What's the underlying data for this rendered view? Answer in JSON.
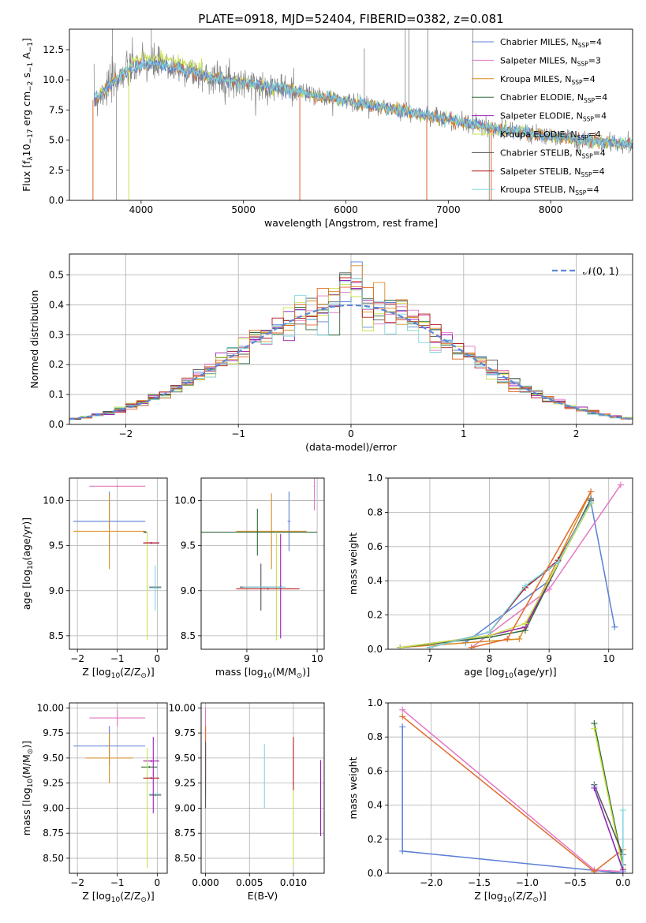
{
  "figure_title": "PLATE=0918, MJD=52404, FIBERID=0382, z=0.081",
  "colors": {
    "chabrier_miles": "#5b7fd8",
    "salpeter_miles": "#e377c2",
    "kroupa_miles": "#d98c1f",
    "chabrier_elodie": "#2e6b3c",
    "salpeter_elodie": "#9b1fb5",
    "kroupa_elodie": "#c8e04a",
    "chabrier_stelib": "#555555",
    "salpeter_stelib": "#b2171a",
    "kroupa_stelib": "#7fd6e0",
    "data": "#808080",
    "fit_orange": "#e0692a",
    "gaussian": "#5b87d6"
  },
  "chart_data": [
    {
      "id": "spectrum",
      "type": "line",
      "xlabel": "wavelength [Angstrom, rest frame]",
      "ylabel_parts": [
        "Flux [f",
        "λ",
        "10",
        "−17",
        " erg cm",
        "−2",
        " s",
        "−1",
        " A",
        "−1",
        "]"
      ],
      "xlim": [
        3300,
        8800
      ],
      "ylim": [
        0,
        14.2
      ],
      "xticks": [
        4000,
        5000,
        6000,
        7000,
        8000
      ],
      "yticks": [
        0.0,
        2.5,
        5.0,
        7.5,
        10.0,
        12.5
      ],
      "grid": false,
      "legend_placement": "upper-right",
      "legend": [
        {
          "pre": "Chabrier MILES, N",
          "sub": "SSP",
          "post": "=4",
          "color_key": "chabrier_miles"
        },
        {
          "pre": "Salpeter MILES, N",
          "sub": "SSP",
          "post": "=3",
          "color_key": "salpeter_miles"
        },
        {
          "pre": "Kroupa MILES, N",
          "sub": "SSP",
          "post": "=4",
          "color_key": "kroupa_miles"
        },
        {
          "pre": "Chabrier ELODIE, N",
          "sub": "SSP",
          "post": "=4",
          "color_key": "chabrier_elodie"
        },
        {
          "pre": "Salpeter ELODIE, N",
          "sub": "SSP",
          "post": "=4",
          "color_key": "salpeter_elodie"
        },
        {
          "pre": "Kroupa ELODIE, N",
          "sub": "SSP",
          "post": "=4",
          "color_key": "kroupa_elodie"
        },
        {
          "pre": "Chabrier STELIB, N",
          "sub": "SSP",
          "post": "=4",
          "color_key": "chabrier_stelib"
        },
        {
          "pre": "Salpeter STELIB, N",
          "sub": "SSP",
          "post": "=4",
          "color_key": "salpeter_stelib"
        },
        {
          "pre": "Kroupa STELIB, N",
          "sub": "SSP",
          "post": "=4",
          "color_key": "kroupa_stelib"
        }
      ],
      "continuum": {
        "x": [
          3540,
          3600,
          3700,
          3800,
          3900,
          4000,
          4100,
          4200,
          4300,
          4500,
          4700,
          4900,
          5100,
          5300,
          5500,
          5700,
          5900,
          6100,
          6300,
          6500,
          6700,
          6900,
          7100,
          7300,
          7500,
          7700,
          7900,
          8100,
          8300,
          8500,
          8800
        ],
        "y": [
          8.3,
          8.8,
          9.6,
          10.4,
          10.9,
          11.2,
          11.3,
          11.2,
          11.0,
          10.6,
          10.2,
          9.9,
          9.6,
          9.4,
          9.1,
          8.7,
          8.4,
          8.1,
          7.8,
          7.5,
          7.2,
          6.9,
          6.5,
          6.2,
          5.9,
          5.7,
          5.4,
          5.2,
          5.0,
          4.8,
          4.7
        ]
      },
      "data_spikes": [
        {
          "x": 3720,
          "y": 14.2
        },
        {
          "x": 3760,
          "y": 0.0
        },
        {
          "x": 4100,
          "y": 14.2
        },
        {
          "x": 5550,
          "y": 0.0
        },
        {
          "x": 6180,
          "y": 12.6
        },
        {
          "x": 6580,
          "y": 14.2
        },
        {
          "x": 6615,
          "y": 14.2
        },
        {
          "x": 6790,
          "y": 0.0
        },
        {
          "x": 6800,
          "y": 14.2
        },
        {
          "x": 7240,
          "y": 14.2
        },
        {
          "x": 7400,
          "y": 0.0
        }
      ],
      "fit_dips": [
        {
          "x": 3530,
          "y": 0.0,
          "color_key": "fit_orange"
        },
        {
          "x": 3880,
          "y": 0.0,
          "color_key": "kroupa_elodie"
        },
        {
          "x": 5550,
          "y": 0.0,
          "color_key": "fit_orange"
        },
        {
          "x": 6790,
          "y": 0.0,
          "color_key": "fit_orange"
        },
        {
          "x": 7420,
          "y": 0.0,
          "color_key": "fit_orange"
        }
      ]
    },
    {
      "id": "residuals",
      "type": "histogram",
      "xlabel": "(data-model)/error",
      "ylabel": "Normed distribution",
      "xlim": [
        -2.5,
        2.5
      ],
      "ylim": [
        0,
        0.57
      ],
      "xticks": [
        -2,
        -1,
        0,
        1,
        2
      ],
      "yticks": [
        0.0,
        0.1,
        0.2,
        0.3,
        0.4,
        0.5
      ],
      "grid": true,
      "legend_placement": "upper-right",
      "legend": [
        {
          "label": "𝒩(0, 1)",
          "color_key": "gaussian",
          "style": "dashed"
        }
      ],
      "bin_width": 0.1,
      "bin_start": -2.5
    },
    {
      "id": "age_vs_Z",
      "type": "errorbar",
      "xlabel_parts": [
        "Z [log",
        "10",
        "(Z/Z",
        "⊙",
        ")]"
      ],
      "ylabel_parts": [
        "age  [log",
        "10",
        "(age/yr)]"
      ],
      "xlim": [
        -2.2,
        0.25
      ],
      "ylim": [
        8.35,
        10.25
      ],
      "xticks": [
        -2,
        -1,
        0
      ],
      "yticks": [
        8.5,
        9.0,
        9.5,
        10.0
      ],
      "grid": true,
      "points": [
        {
          "color_key": "chabrier_miles",
          "x": -1.2,
          "xerr": 0.9,
          "y": 9.77,
          "yerr": 0.33
        },
        {
          "color_key": "salpeter_miles",
          "x": -1.0,
          "xerr": 0.7,
          "y": 10.16,
          "yerr": 0.01
        },
        {
          "color_key": "kroupa_miles",
          "x": -1.2,
          "xerr": 0.9,
          "y": 9.66,
          "yerr": 0.42
        },
        {
          "color_key": "chabrier_elodie",
          "x": -0.3,
          "xerr": 0.05,
          "y": 9.65,
          "yerr": 0.01
        },
        {
          "color_key": "salpeter_elodie",
          "x": -0.15,
          "xerr": 0.2,
          "y": 9.53,
          "yerr": 0.01
        },
        {
          "color_key": "kroupa_elodie",
          "x": -0.25,
          "xerr": 0.02,
          "y": 9.05,
          "yerr": 0.6
        },
        {
          "color_key": "chabrier_stelib",
          "x": -0.05,
          "xerr": 0.15,
          "y": 9.04,
          "yerr": 0.01
        },
        {
          "color_key": "salpeter_stelib",
          "x": -0.15,
          "xerr": 0.2,
          "y": 9.53,
          "yerr": 0.01
        },
        {
          "color_key": "kroupa_stelib",
          "x": -0.05,
          "xerr": 0.15,
          "y": 9.03,
          "yerr": 0.25
        }
      ]
    },
    {
      "id": "age_vs_mass",
      "type": "errorbar",
      "xlabel_parts": [
        "mass [log",
        "10",
        "(M/M",
        "⊙",
        ")]"
      ],
      "ylabel_parts": [],
      "xlim": [
        8.35,
        10.1
      ],
      "ylim": [
        8.35,
        10.25
      ],
      "xticks": [
        9,
        10
      ],
      "yticks": [
        8.5,
        9.0,
        9.5,
        10.0
      ],
      "grid": true,
      "points": [
        {
          "color_key": "chabrier_miles",
          "x": 9.6,
          "xerr": 0.02,
          "y": 9.77,
          "yerr": 0.33
        },
        {
          "color_key": "salpeter_miles",
          "x": 9.96,
          "xerr": 0.01,
          "y": 10.16,
          "yerr": 0.27
        },
        {
          "color_key": "kroupa_miles",
          "x": 9.35,
          "xerr": 0.5,
          "y": 9.66,
          "yerr": 0.42
        },
        {
          "color_key": "chabrier_elodie",
          "x": 9.15,
          "xerr": 0.85,
          "y": 9.65,
          "yerr": 0.26
        },
        {
          "color_key": "salpeter_elodie",
          "x": 9.48,
          "xerr": 0.01,
          "y": 9.05,
          "yerr": 0.58
        },
        {
          "color_key": "kroupa_elodie",
          "x": 9.42,
          "xerr": 0.01,
          "y": 9.05,
          "yerr": 0.6
        },
        {
          "color_key": "chabrier_stelib",
          "x": 9.2,
          "xerr": 0.3,
          "y": 9.04,
          "yerr": 0.26
        },
        {
          "color_key": "salpeter_stelib",
          "x": 9.3,
          "xerr": 0.45,
          "y": 9.02,
          "yerr": 0.01
        },
        {
          "color_key": "kroupa_stelib",
          "x": 9.25,
          "xerr": 0.3,
          "y": 9.04,
          "yerr": 0.01
        }
      ]
    },
    {
      "id": "weight_vs_age",
      "type": "line",
      "xlabel_parts": [
        "age  [log",
        "10",
        "(age/yr)]"
      ],
      "ylabel": "mass weight",
      "xlim": [
        6.3,
        10.4
      ],
      "ylim": [
        0,
        1.0
      ],
      "xticks": [
        7,
        8,
        9,
        10
      ],
      "yticks": [
        0.0,
        0.2,
        0.4,
        0.6,
        0.8,
        1.0
      ],
      "grid": true,
      "series": [
        {
          "color_key": "chabrier_miles",
          "x": [
            7.6,
            9.0,
            9.7,
            10.1
          ],
          "y": [
            0.04,
            0.4,
            0.86,
            0.13
          ]
        },
        {
          "color_key": "salpeter_miles",
          "x": [
            7.7,
            9.0,
            10.2
          ],
          "y": [
            0.01,
            0.35,
            0.96
          ]
        },
        {
          "color_key": "kroupa_miles",
          "x": [
            6.5,
            8.5,
            9.7
          ],
          "y": [
            0.01,
            0.06,
            0.92
          ]
        },
        {
          "color_key": "chabrier_elodie",
          "x": [
            6.5,
            8.0,
            8.6,
            9.7
          ],
          "y": [
            0.01,
            0.07,
            0.11,
            0.88
          ]
        },
        {
          "color_key": "salpeter_elodie",
          "x": [
            6.5,
            8.0,
            8.6,
            9.7
          ],
          "y": [
            0.01,
            0.08,
            0.13,
            0.87
          ]
        },
        {
          "color_key": "kroupa_elodie",
          "x": [
            6.5,
            8.0,
            8.6,
            9.7
          ],
          "y": [
            0.01,
            0.08,
            0.15,
            0.85
          ]
        },
        {
          "color_key": "chabrier_stelib",
          "x": [
            7.0,
            8.0,
            8.6,
            9.15,
            9.7
          ],
          "y": [
            0.01,
            0.1,
            0.36,
            0.51,
            0.87
          ]
        },
        {
          "color_key": "salpeter_stelib",
          "x": [
            7.0,
            8.0,
            8.6,
            9.15,
            9.7
          ],
          "y": [
            0.01,
            0.1,
            0.36,
            0.52,
            0.86
          ]
        },
        {
          "color_key": "kroupa_stelib",
          "x": [
            7.0,
            8.0,
            8.6,
            9.15,
            9.7
          ],
          "y": [
            0.01,
            0.1,
            0.37,
            0.51,
            0.86
          ]
        },
        {
          "color_key": "fit_orange",
          "x": [
            7.7,
            8.3,
            9.7
          ],
          "y": [
            0.01,
            0.06,
            0.92
          ]
        }
      ]
    },
    {
      "id": "mass_vs_Z",
      "type": "errorbar",
      "xlabel_parts": [
        "Z [log",
        "10",
        "(Z/Z",
        "⊙",
        ")]"
      ],
      "ylabel_parts": [
        "mass [log",
        "10",
        "(M/M",
        "⊙",
        ")]"
      ],
      "xlim": [
        -2.2,
        0.25
      ],
      "ylim": [
        8.35,
        10.05
      ],
      "xticks": [
        -2,
        -1,
        0
      ],
      "yticks": [
        8.5,
        8.75,
        9.0,
        9.25,
        9.5,
        9.75,
        10.0
      ],
      "grid": true,
      "points": [
        {
          "color_key": "chabrier_miles",
          "x": -1.2,
          "xerr": 0.9,
          "y": 9.62,
          "yerr": 0.2
        },
        {
          "color_key": "salpeter_miles",
          "x": -1.0,
          "xerr": 0.7,
          "y": 9.9,
          "yerr": 0.08
        },
        {
          "color_key": "kroupa_miles",
          "x": -1.2,
          "xerr": 0.6,
          "y": 9.5,
          "yerr": 0.25
        },
        {
          "color_key": "chabrier_elodie",
          "x": -0.2,
          "xerr": 0.2,
          "y": 9.41,
          "yerr": 0.01
        },
        {
          "color_key": "salpeter_elodie",
          "x": -0.15,
          "xerr": 0.2,
          "y": 9.47,
          "yerr": 0.01
        },
        {
          "color_key": "kroupa_elodie",
          "x": -0.25,
          "xerr": 0.02,
          "y": 9.0,
          "yerr": 0.6
        },
        {
          "color_key": "chabrier_stelib",
          "x": -0.05,
          "xerr": 0.15,
          "y": 9.13,
          "yerr": 0.01
        },
        {
          "color_key": "salpeter_stelib",
          "x": -0.15,
          "xerr": 0.2,
          "y": 9.3,
          "yerr": 0.01
        },
        {
          "color_key": "kroupa_stelib",
          "x": -0.05,
          "xerr": 0.15,
          "y": 9.14,
          "yerr": 0.01
        },
        {
          "color_key": "salpeter_elodie",
          "x": -0.1,
          "xerr": 0.01,
          "y": 9.33,
          "yerr": 0.38
        }
      ]
    },
    {
      "id": "mass_vs_ebv",
      "type": "errorbar",
      "xlabel": "E(B-V)",
      "ylabel_parts": [],
      "xlim": [
        -0.0005,
        0.0135
      ],
      "ylim": [
        8.35,
        10.05
      ],
      "xticks": [
        0.0,
        0.005,
        0.01
      ],
      "xtick_labels": [
        "0.000",
        "0.005",
        "0.010"
      ],
      "yticks": [
        8.5,
        8.75,
        9.0,
        9.25,
        9.5,
        9.75,
        10.0
      ],
      "grid": true,
      "points": [
        {
          "color_key": "salpeter_miles",
          "x": 0.0,
          "xerr": 0.0,
          "y": 9.65,
          "yerr": 0.35
        },
        {
          "color_key": "fit_orange",
          "x": 0.0,
          "xerr": 0.0,
          "y": 9.47,
          "yerr": 0.35
        },
        {
          "color_key": "chabrier_stelib",
          "x": 0.0,
          "xerr": 0.0,
          "y": 9.33,
          "yerr": 0.33
        },
        {
          "color_key": "kroupa_stelib",
          "x": 0.0067,
          "xerr": 0.0,
          "y": 9.32,
          "yerr": 0.32
        },
        {
          "color_key": "salpeter_stelib",
          "x": 0.01,
          "xerr": 0.0,
          "y": 9.44,
          "yerr": 0.27
        },
        {
          "color_key": "kroupa_elodie",
          "x": 0.01,
          "xerr": 0.0,
          "y": 8.8,
          "yerr": 0.38
        },
        {
          "color_key": "salpeter_elodie",
          "x": 0.0131,
          "xerr": 0.0,
          "y": 9.1,
          "yerr": 0.38
        }
      ]
    },
    {
      "id": "weight_vs_Z",
      "type": "line",
      "xlabel_parts": [
        "Z [log",
        "10",
        "(Z/Z",
        "⊙",
        ")]"
      ],
      "ylabel": "mass weight",
      "xlim": [
        -2.45,
        0.1
      ],
      "ylim": [
        0,
        1.0
      ],
      "xticks": [
        -2.0,
        -1.5,
        -1.0,
        -0.5,
        0.0
      ],
      "xtick_labels": [
        "−2.0",
        "−1.5",
        "−1.0",
        "−0.5",
        "0.0"
      ],
      "yticks": [
        0.0,
        0.2,
        0.4,
        0.6,
        0.8,
        1.0
      ],
      "grid": true,
      "series": [
        {
          "color_key": "chabrier_miles",
          "x": [
            -2.3,
            -2.3,
            0.0,
            0.0
          ],
          "y": [
            0.86,
            0.13,
            0.0,
            0.01
          ]
        },
        {
          "color_key": "salpeter_miles",
          "x": [
            -2.3,
            -0.3,
            0.0
          ],
          "y": [
            0.96,
            0.02,
            0.01
          ]
        },
        {
          "color_key": "fit_orange",
          "x": [
            -2.3,
            -0.3,
            0.0
          ],
          "y": [
            0.92,
            0.01,
            0.14
          ]
        },
        {
          "color_key": "chabrier_elodie",
          "x": [
            -0.3,
            0.0
          ],
          "y": [
            0.88,
            0.05
          ]
        },
        {
          "color_key": "kroupa_elodie",
          "x": [
            -0.3,
            0.0
          ],
          "y": [
            0.85,
            0.03
          ]
        },
        {
          "color_key": "chabrier_stelib",
          "x": [
            -0.3,
            0.0
          ],
          "y": [
            0.52,
            0.11
          ]
        },
        {
          "color_key": "kroupa_stelib",
          "x": [
            -0.3,
            0.0,
            0.0
          ],
          "y": [
            0.51,
            0.01,
            0.37
          ]
        },
        {
          "color_key": "salpeter_elodie",
          "x": [
            -0.3,
            0.0
          ],
          "y": [
            0.5,
            0.02
          ]
        }
      ]
    }
  ]
}
